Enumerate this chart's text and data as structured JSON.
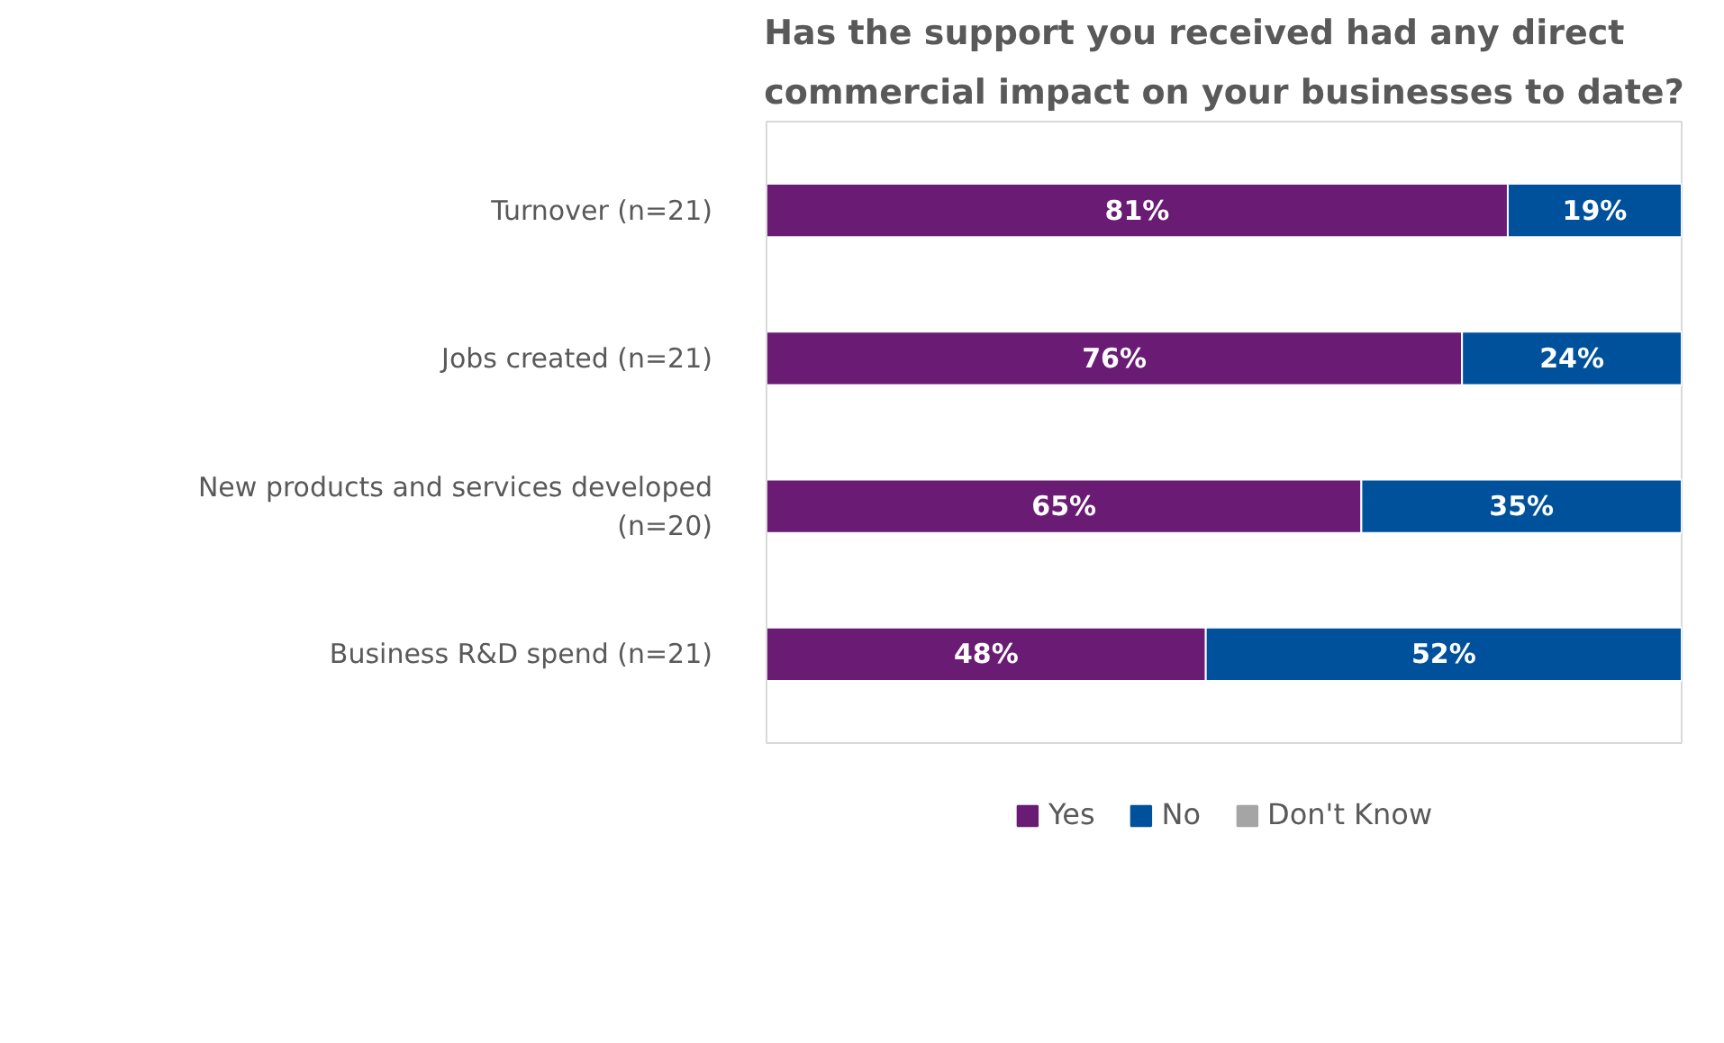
{
  "chart_data": {
    "type": "bar",
    "orientation": "horizontal",
    "stacked": true,
    "title": "Has the support you received had any direct commercial impact on your businesses to date?",
    "categories": [
      "Turnover (n=21)",
      "Jobs created (n=21)",
      "New products and services developed (n=20)",
      "Business R&D spend (n=21)"
    ],
    "series": [
      {
        "name": "Yes",
        "color": "#6a1b74",
        "values": [
          81,
          76,
          65,
          48
        ],
        "value_labels": [
          "81%",
          "76%",
          "65%",
          "48%"
        ]
      },
      {
        "name": "No",
        "color": "#00519c",
        "values": [
          19,
          24,
          35,
          52
        ],
        "value_labels": [
          "19%",
          "24%",
          "35%",
          "52%"
        ]
      },
      {
        "name": "Don't Know",
        "color": "#a5a5a5",
        "values": [
          null,
          null,
          null,
          null
        ],
        "value_labels": [
          null,
          null,
          null,
          null
        ]
      }
    ],
    "legend": "bottom",
    "grid": false,
    "tick_labels": "y"
  }
}
